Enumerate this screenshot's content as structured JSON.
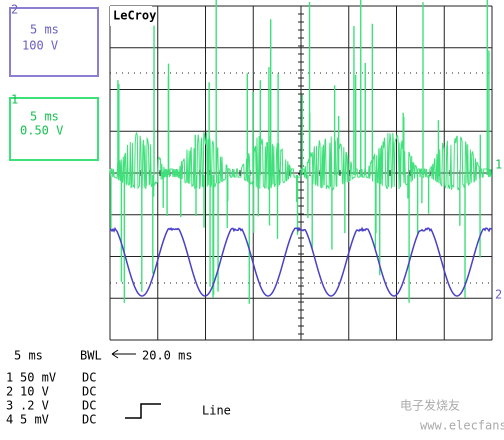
{
  "channel_boxes": [
    {
      "number": "2",
      "timebase": "5 ms",
      "scale": "100 V"
    },
    {
      "number": "1",
      "timebase": "5 ms",
      "scale": "0.50 V"
    }
  ],
  "brand": "LeCroy",
  "trace_markers": [
    "1",
    "2"
  ],
  "status": {
    "timebase": "5 ms",
    "filter": "BWL",
    "span": "20.0 ms"
  },
  "channels": [
    {
      "number": "1",
      "scale": "50 mV",
      "coupling": "DC"
    },
    {
      "number": "2",
      "scale": "10 V",
      "coupling": "DC"
    },
    {
      "number": "3",
      "scale": ".2 V",
      "coupling": "DC"
    },
    {
      "number": "4",
      "scale": "5 mV",
      "coupling": "DC"
    }
  ],
  "trigger": "Line",
  "watermark": {
    "title": "电子发烧友",
    "url": "www.elecfans.com"
  }
}
